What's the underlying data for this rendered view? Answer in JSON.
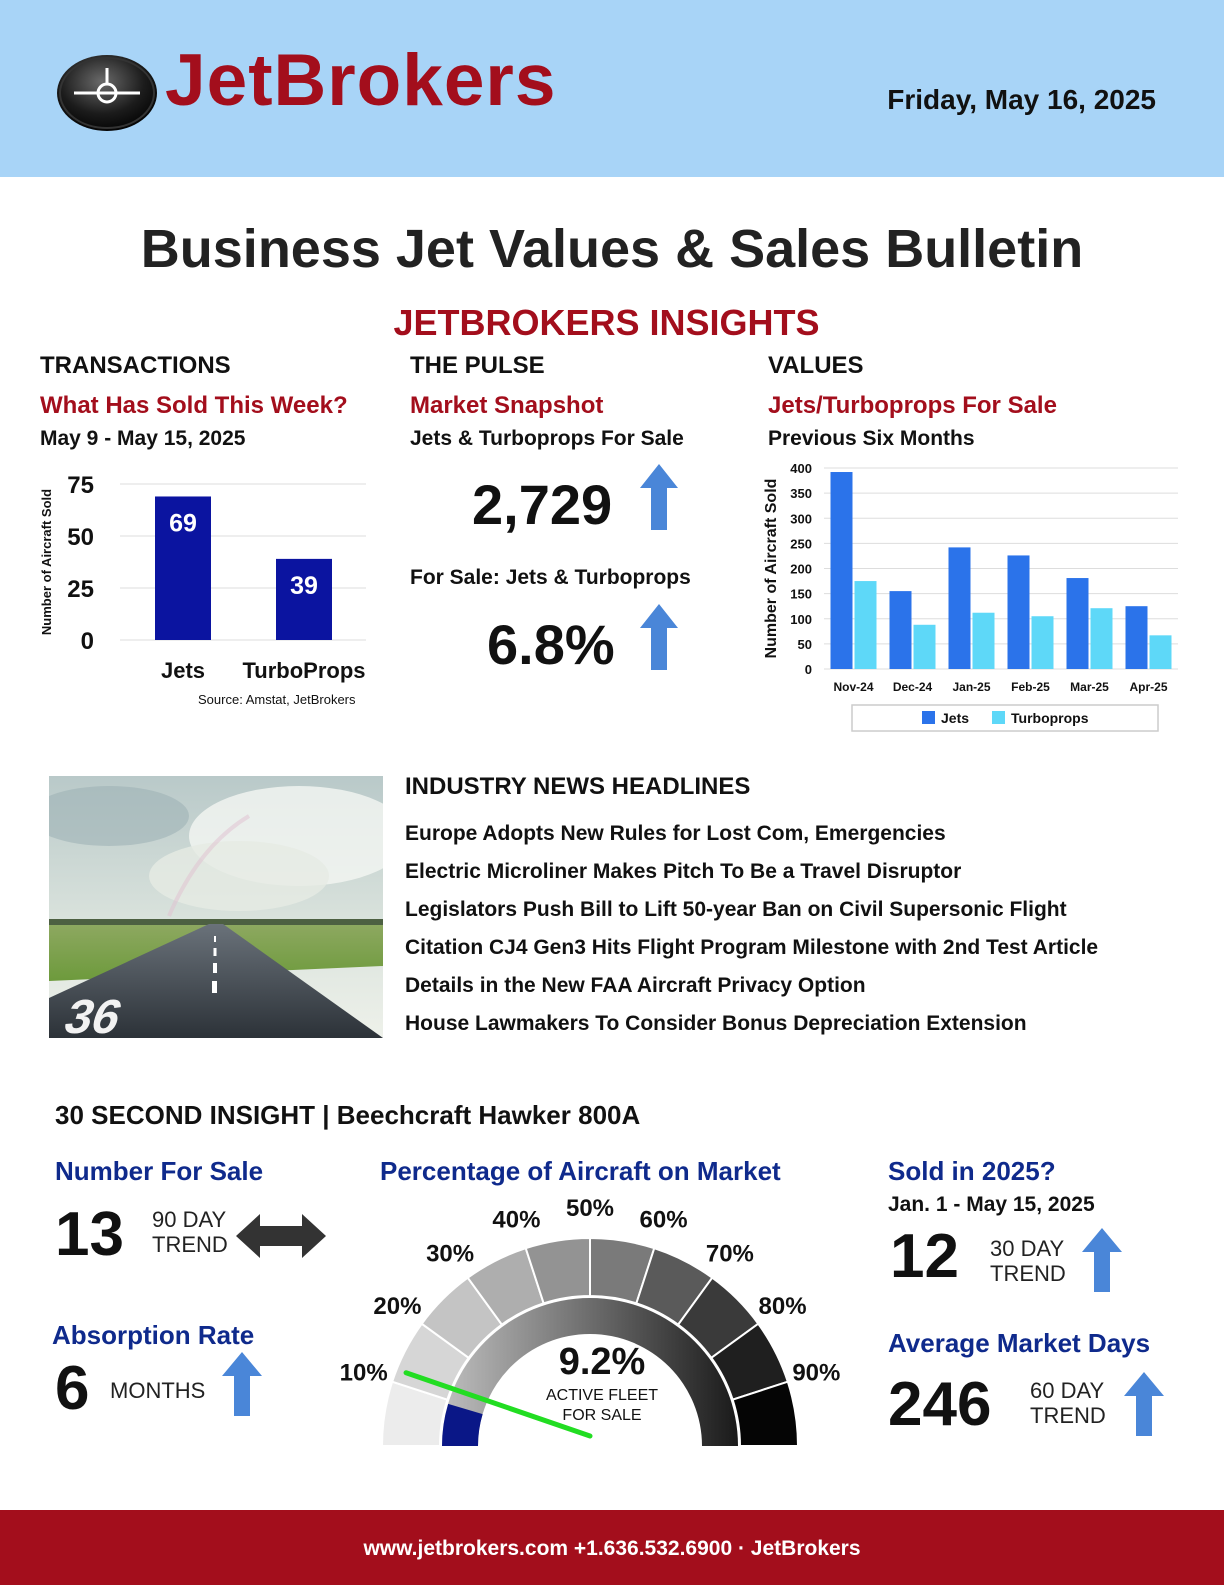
{
  "header": {
    "brand": "JetBrokers",
    "date": "Friday, May 16, 2025"
  },
  "title": "Business Jet Values & Sales Bulletin",
  "insights_title": "JETBROKERS INSIGHTS",
  "transactions": {
    "heading": "TRANSACTIONS",
    "subtitle": "What Has Sold This Week?",
    "range": "May 9 - May 15, 2025",
    "source": "Source: Amstat, JetBrokers"
  },
  "pulse": {
    "heading": "THE PULSE",
    "subtitle": "Market Snapshot",
    "line1": "Jets & Turboprops For Sale",
    "value1": "2,729",
    "line2": "For Sale: Jets & Turboprops",
    "value2": "6.8%"
  },
  "values": {
    "heading": "VALUES",
    "subtitle": "Jets/Turboprops For Sale",
    "range": "Previous Six Months"
  },
  "chart_data": [
    {
      "type": "bar",
      "title": "",
      "ylabel": "Number of Aircraft Sold",
      "ylim": [
        0,
        75
      ],
      "yticks": [
        0,
        25,
        50,
        75
      ],
      "categories": [
        "Jets",
        "TurboProps"
      ],
      "values": [
        69,
        39
      ],
      "data_labels": [
        "69",
        "39"
      ],
      "color": "#0b14a0",
      "grid": true
    },
    {
      "type": "bar",
      "title": "",
      "ylabel": "Number of Aircraft Sold",
      "ylim": [
        0,
        400
      ],
      "yticks": [
        0,
        50,
        100,
        150,
        200,
        250,
        300,
        350,
        400
      ],
      "categories": [
        "Nov-24",
        "Dec-24",
        "Jan-25",
        "Feb-25",
        "Mar-25",
        "Apr-25"
      ],
      "series": [
        {
          "name": "Jets",
          "values": [
            392,
            155,
            242,
            226,
            181,
            125
          ],
          "color": "#2b73ea"
        },
        {
          "name": "Turboprops",
          "values": [
            175,
            88,
            112,
            105,
            121,
            67
          ],
          "color": "#5ed8f8"
        }
      ],
      "legend": "bottom",
      "grid": true
    }
  ],
  "news": {
    "heading": "INDUSTRY NEWS HEADLINES",
    "items": [
      "Europe Adopts New Rules for Lost Com, Emergencies",
      "Electric Microliner Makes Pitch To Be a Travel Disruptor",
      "Legislators Push Bill to Lift 50-year Ban on Civil Supersonic Flight",
      "Citation CJ4 Gen3 Hits Flight Program Milestone with 2nd Test Article",
      "Details in the New FAA Aircraft Privacy Option",
      "House Lawmakers To Consider Bonus Depreciation Extension"
    ],
    "runway_number": "36"
  },
  "insight": {
    "heading": "30 SECOND INSIGHT | Beechcraft Hawker 800A",
    "number_for_sale": {
      "label": "Number For Sale",
      "value": "13",
      "trend_line1": "90 DAY",
      "trend_line2": "TREND"
    },
    "absorption": {
      "label": "Absorption Rate",
      "value": "6",
      "unit": "MONTHS"
    },
    "gauge": {
      "label": "Percentage of Aircraft on Market",
      "value": "9.2%",
      "value_number": 9.2,
      "caption_line1": "ACTIVE FLEET",
      "caption_line2": "FOR SALE",
      "ticks": [
        "10%",
        "20%",
        "30%",
        "40%",
        "50%",
        "60%",
        "70%",
        "80%",
        "90%"
      ],
      "segment_colors": [
        "#ececec",
        "#d6d6d6",
        "#c4c4c4",
        "#aeaeae",
        "#939393",
        "#7a7a7a",
        "#5a5a5a",
        "#3a3a3a",
        "#1f1f1f",
        "#050505"
      ],
      "needle_color": "#22dd22",
      "fill_color": "#0a1787"
    },
    "sold": {
      "label": "Sold in 2025?",
      "range": "Jan. 1 - May 15, 2025",
      "value": "12",
      "trend_line1": "30 DAY",
      "trend_line2": "TREND"
    },
    "market_days": {
      "label": "Average Market Days",
      "value": "246",
      "trend_line1": "60 DAY",
      "trend_line2": "TREND"
    }
  },
  "footer": {
    "text": "www.jetbrokers.com +1.636.532.6900 · JetBrokers"
  }
}
